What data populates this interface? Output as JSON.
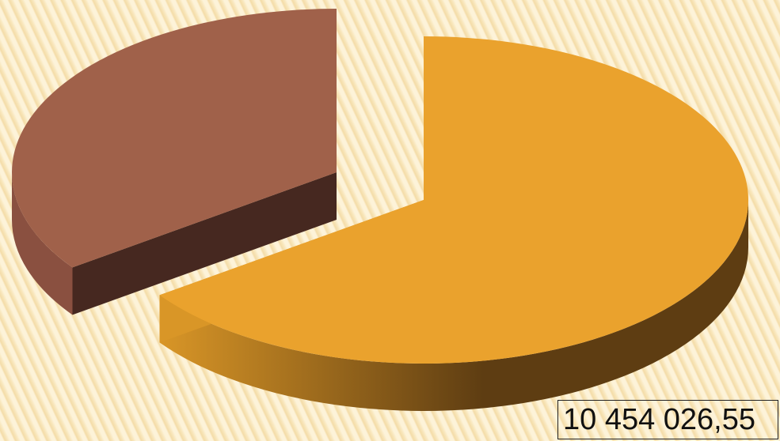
{
  "chart_data": {
    "type": "pie",
    "style": "3d-exploded",
    "categories": [
      "",
      ""
    ],
    "values": [
      10454026.55,
      5600000
    ],
    "colors": {
      "slice_1_top": "#eaa22d",
      "slice_1_side_light": "#d99627",
      "slice_1_side_dark": "#5e3d12",
      "slice_2_top": "#a0614a",
      "slice_2_side": "#8a5040",
      "slice_2_cut": "#462820"
    },
    "data_labels": [
      "10 454 026,55"
    ],
    "title": "",
    "legend": "none"
  }
}
